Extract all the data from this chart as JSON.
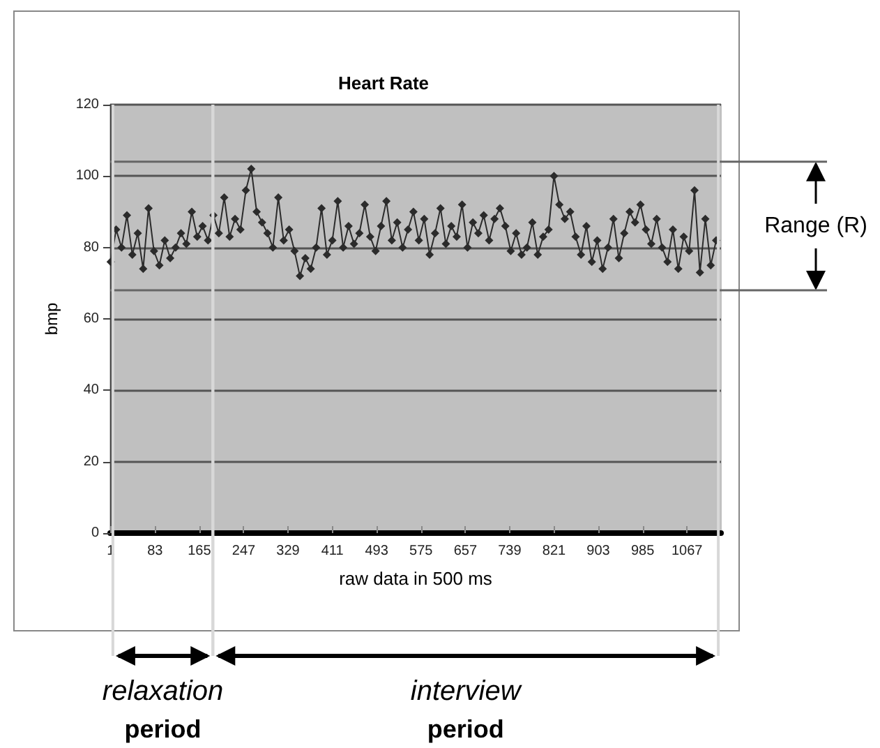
{
  "chart_data": {
    "type": "line",
    "title": "Heart Rate",
    "xlabel": "raw data in 500 ms",
    "ylabel": "bmp",
    "x": [
      1,
      11,
      21,
      31,
      41,
      51,
      61,
      71,
      81,
      91,
      101,
      111,
      121,
      131,
      141,
      151,
      161,
      171,
      181,
      191,
      201,
      211,
      221,
      231,
      241,
      251,
      261,
      271,
      281,
      291,
      301,
      311,
      321,
      331,
      341,
      351,
      361,
      371,
      381,
      391,
      401,
      411,
      421,
      431,
      441,
      451,
      461,
      471,
      481,
      491,
      501,
      511,
      521,
      531,
      541,
      551,
      561,
      571,
      581,
      591,
      601,
      611,
      621,
      631,
      641,
      651,
      661,
      671,
      681,
      691,
      701,
      711,
      721,
      731,
      741,
      751,
      761,
      771,
      781,
      791,
      801,
      811,
      821,
      831,
      841,
      851,
      861,
      871,
      881,
      891,
      901,
      911,
      921,
      931,
      941,
      951,
      961,
      971,
      981,
      991,
      1001,
      1011,
      1021,
      1031,
      1041,
      1051,
      1061,
      1071,
      1081,
      1091,
      1101,
      1111,
      1121
    ],
    "series": [
      {
        "color": "#2b2b2b",
        "values": [
          76,
          85,
          80,
          89,
          78,
          84,
          74,
          91,
          79,
          75,
          82,
          77,
          80,
          84,
          81,
          90,
          83,
          86,
          82,
          89,
          84,
          94,
          83,
          88,
          85,
          96,
          102,
          90,
          87,
          84,
          80,
          94,
          82,
          85,
          79,
          72,
          77,
          74,
          80,
          91,
          78,
          82,
          93,
          80,
          86,
          81,
          84,
          92,
          83,
          79,
          86,
          93,
          82,
          87,
          80,
          85,
          90,
          82,
          88,
          78,
          84,
          91,
          81,
          86,
          83,
          92,
          80,
          87,
          84,
          89,
          82,
          88,
          91,
          86,
          79,
          84,
          78,
          80,
          87,
          78,
          83,
          85,
          100,
          92,
          88,
          90,
          83,
          78,
          86,
          76,
          82,
          74,
          80,
          88,
          77,
          84,
          90,
          87,
          92,
          85,
          81,
          88,
          80,
          76,
          85,
          74,
          83,
          79,
          96,
          73,
          88,
          75,
          82
        ]
      }
    ],
    "xlim": [
      0,
      1130
    ],
    "xticks": [
      1,
      83,
      165,
      247,
      329,
      411,
      493,
      575,
      657,
      739,
      821,
      903,
      985,
      1067
    ],
    "ylim": [
      0,
      120
    ],
    "yticks": [
      0,
      20,
      40,
      60,
      80,
      100,
      120
    ],
    "grid": "y",
    "marker": "diamond",
    "line_style": "solid",
    "ref_lines": [
      {
        "axis": "y",
        "value": 104
      },
      {
        "axis": "y",
        "value": 68
      },
      {
        "axis": "x",
        "value": 5
      },
      {
        "axis": "x",
        "value": 190
      },
      {
        "axis": "x",
        "value": 1125
      }
    ],
    "annotations": [
      "Range (R)",
      "relaxation period",
      "interview period"
    ]
  }
}
